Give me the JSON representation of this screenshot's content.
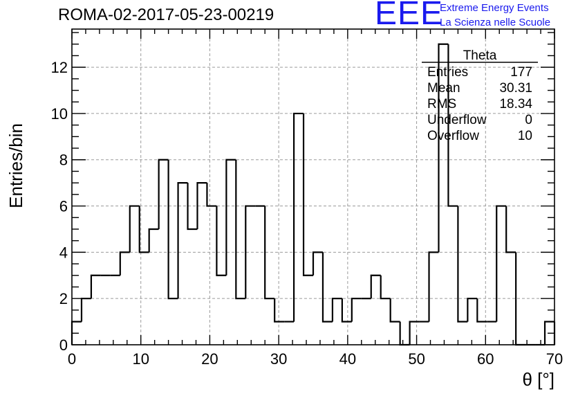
{
  "page": {
    "title": "ROMA-02-2017-05-23-00219",
    "brand": {
      "logo_text": "EEE",
      "line1": "Extreme Energy Events",
      "line2": "La Scienza nelle Scuole",
      "color": "#1a1aee"
    }
  },
  "stats_box": {
    "title": "Theta",
    "rows": [
      {
        "label": "Entries",
        "value": "177"
      },
      {
        "label": "Mean",
        "value": "30.31"
      },
      {
        "label": "RMS",
        "value": "18.34"
      },
      {
        "label": "Underflow",
        "value": "0"
      },
      {
        "label": "Overflow",
        "value": "10"
      }
    ]
  },
  "chart_data": {
    "type": "bar",
    "style": "step-histogram",
    "title": "ROMA-02-2017-05-23-00219",
    "xlabel": "θ [°]",
    "ylabel": "Entries/bin",
    "xlim": [
      0,
      70
    ],
    "ylim": [
      0,
      13.65
    ],
    "xticks": [
      0,
      10,
      20,
      30,
      40,
      50,
      60,
      70
    ],
    "yticks": [
      0,
      2,
      4,
      6,
      8,
      10,
      12
    ],
    "grid": true,
    "bin_width": 1.4,
    "series": [
      {
        "values": [
          1,
          2,
          3,
          3,
          3,
          4,
          6,
          4,
          5,
          8,
          2,
          7,
          5,
          7,
          6,
          3,
          8,
          2,
          6,
          6,
          2,
          1,
          1,
          10,
          3,
          4,
          1,
          2,
          1,
          2,
          2,
          3,
          2,
          1,
          0,
          1,
          1,
          4,
          13,
          6,
          1,
          2,
          1,
          1,
          6,
          4,
          0,
          0,
          0,
          1
        ],
        "color": "#000000"
      }
    ]
  }
}
